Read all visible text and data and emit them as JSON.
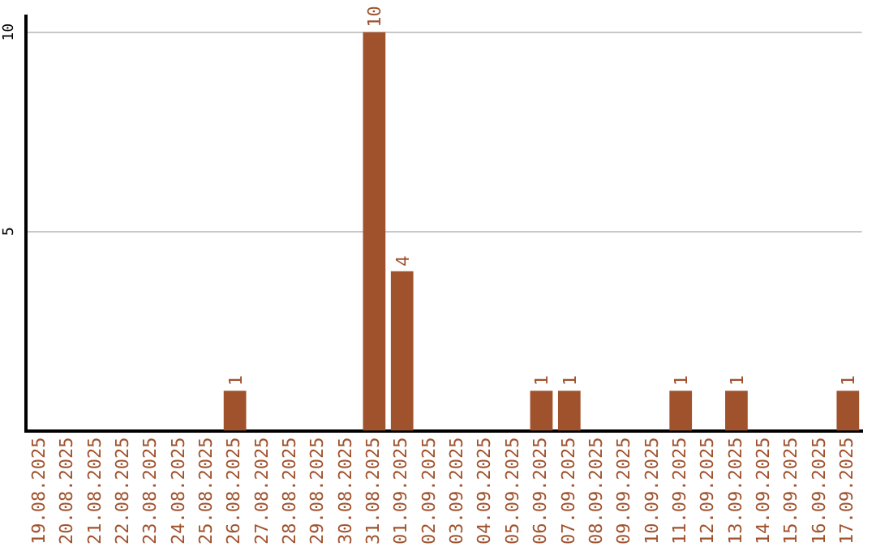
{
  "chart_data": {
    "type": "bar",
    "categories": [
      "19.08.2025",
      "20.08.2025",
      "21.08.2025",
      "22.08.2025",
      "23.08.2025",
      "24.08.2025",
      "25.08.2025",
      "26.08.2025",
      "27.08.2025",
      "28.08.2025",
      "29.08.2025",
      "30.08.2025",
      "31.08.2025",
      "01.09.2025",
      "02.09.2025",
      "03.09.2025",
      "04.09.2025",
      "05.09.2025",
      "06.09.2025",
      "07.09.2025",
      "08.09.2025",
      "09.09.2025",
      "10.09.2025",
      "11.09.2025",
      "12.09.2025",
      "13.09.2025",
      "14.09.2025",
      "15.09.2025",
      "16.09.2025",
      "17.09.2025"
    ],
    "values": [
      0,
      0,
      0,
      0,
      0,
      0,
      0,
      1,
      0,
      0,
      0,
      0,
      10,
      4,
      0,
      0,
      0,
      0,
      1,
      1,
      0,
      0,
      0,
      1,
      0,
      1,
      0,
      0,
      0,
      1
    ],
    "value_labels": [
      null,
      null,
      null,
      null,
      null,
      null,
      null,
      "1",
      null,
      null,
      null,
      null,
      "10",
      "4",
      null,
      null,
      null,
      null,
      "1",
      "1",
      null,
      null,
      null,
      "1",
      null,
      "1",
      null,
      null,
      null,
      "1"
    ],
    "color": "#a0522d",
    "ylim": [
      0,
      10.4
    ],
    "yticks": [
      5,
      10
    ],
    "grid": "y",
    "legend": false
  }
}
